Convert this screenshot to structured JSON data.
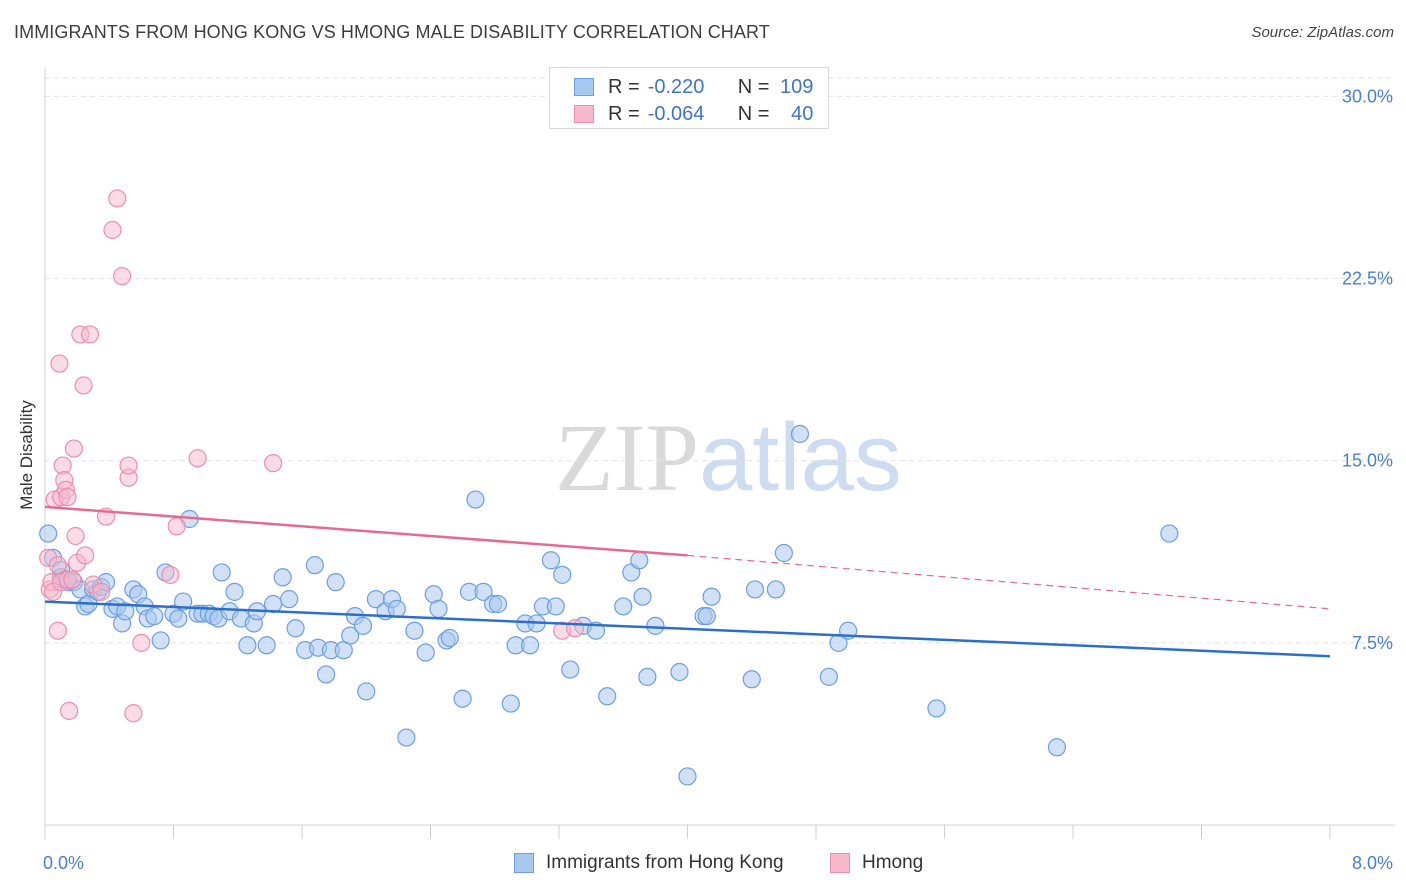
{
  "title": "IMMIGRANTS FROM HONG KONG VS HMONG MALE DISABILITY CORRELATION CHART",
  "source": "Source: ZipAtlas.com",
  "watermark": {
    "zip": "ZIP",
    "atlas": "atlas"
  },
  "legend": {
    "rows": [
      {
        "r_label": "R =",
        "r_value": "-0.220",
        "n_label": "N =",
        "n_value": "109"
      },
      {
        "r_label": "R =",
        "r_value": "-0.064",
        "n_label": "N =",
        "n_value": "40"
      }
    ]
  },
  "bottom_legend": [
    "Immigrants from Hong Kong",
    "Hmong"
  ],
  "chart_data": {
    "type": "scatter",
    "ylabel": "Male Disability",
    "xlabel": "",
    "xlim": [
      0,
      8
    ],
    "ylim": [
      0,
      31.5
    ],
    "x_tick_labels": {
      "min": "0.0%",
      "max": "8.0%"
    },
    "y_ticks": [
      {
        "value": 7.5,
        "label": "7.5%"
      },
      {
        "value": 15.0,
        "label": "15.0%"
      },
      {
        "value": 22.5,
        "label": "22.5%"
      },
      {
        "value": 30.0,
        "label": "30.0%"
      }
    ],
    "grid": true,
    "colors": {
      "hk_fill": "#a9c8f0",
      "hk_stroke": "#6d9ee0",
      "hk_line": "#2b6fcb",
      "hm_fill": "#f7b8cb",
      "hm_stroke": "#ec8ead",
      "hm_line": "#e46a92",
      "tick_label": "#4a7fcf",
      "grid": "#e2e2e2"
    },
    "series": [
      {
        "name": "Immigrants from Hong Kong",
        "trend": {
          "x0": 0.0,
          "y0": 9.2,
          "x1": 8.0,
          "y1": 6.95
        },
        "points": [
          [
            0.02,
            12.0
          ],
          [
            0.05,
            11.0
          ],
          [
            0.1,
            10.5
          ],
          [
            0.1,
            10.2
          ],
          [
            0.12,
            10.1
          ],
          [
            0.15,
            10.0
          ],
          [
            0.18,
            10.0
          ],
          [
            0.22,
            9.7
          ],
          [
            0.25,
            9.0
          ],
          [
            0.27,
            9.1
          ],
          [
            0.3,
            9.7
          ],
          [
            0.33,
            9.6
          ],
          [
            0.35,
            9.8
          ],
          [
            0.38,
            10.0
          ],
          [
            0.42,
            8.9
          ],
          [
            0.45,
            9.0
          ],
          [
            0.48,
            8.3
          ],
          [
            0.5,
            8.8
          ],
          [
            0.55,
            9.7
          ],
          [
            0.58,
            9.5
          ],
          [
            0.62,
            9.0
          ],
          [
            0.64,
            8.5
          ],
          [
            0.68,
            8.6
          ],
          [
            0.72,
            7.6
          ],
          [
            0.75,
            10.4
          ],
          [
            0.8,
            8.7
          ],
          [
            0.83,
            8.5
          ],
          [
            0.86,
            9.2
          ],
          [
            0.9,
            12.6
          ],
          [
            0.95,
            8.7
          ],
          [
            0.98,
            8.7
          ],
          [
            1.02,
            8.7
          ],
          [
            1.05,
            8.6
          ],
          [
            1.08,
            8.5
          ],
          [
            1.1,
            10.4
          ],
          [
            1.15,
            8.8
          ],
          [
            1.18,
            9.6
          ],
          [
            1.22,
            8.5
          ],
          [
            1.26,
            7.4
          ],
          [
            1.3,
            8.3
          ],
          [
            1.32,
            8.8
          ],
          [
            1.38,
            7.4
          ],
          [
            1.42,
            9.1
          ],
          [
            1.48,
            10.2
          ],
          [
            1.52,
            9.3
          ],
          [
            1.56,
            8.1
          ],
          [
            1.62,
            7.2
          ],
          [
            1.68,
            10.7
          ],
          [
            1.7,
            7.3
          ],
          [
            1.75,
            6.2
          ],
          [
            1.78,
            7.2
          ],
          [
            1.81,
            10.0
          ],
          [
            1.86,
            7.2
          ],
          [
            1.9,
            7.8
          ],
          [
            1.93,
            8.6
          ],
          [
            1.98,
            8.2
          ],
          [
            2.0,
            5.5
          ],
          [
            2.06,
            9.3
          ],
          [
            2.12,
            8.8
          ],
          [
            2.16,
            9.3
          ],
          [
            2.19,
            8.9
          ],
          [
            2.25,
            3.6
          ],
          [
            2.3,
            8.0
          ],
          [
            2.37,
            7.1
          ],
          [
            2.42,
            9.5
          ],
          [
            2.45,
            8.9
          ],
          [
            2.5,
            7.6
          ],
          [
            2.52,
            7.7
          ],
          [
            2.6,
            5.2
          ],
          [
            2.64,
            9.6
          ],
          [
            2.68,
            13.4
          ],
          [
            2.73,
            9.6
          ],
          [
            2.79,
            9.1
          ],
          [
            2.82,
            9.1
          ],
          [
            2.9,
            5.0
          ],
          [
            2.93,
            7.4
          ],
          [
            2.99,
            8.3
          ],
          [
            3.02,
            7.4
          ],
          [
            3.06,
            8.3
          ],
          [
            3.1,
            9.0
          ],
          [
            3.15,
            10.9
          ],
          [
            3.18,
            9.0
          ],
          [
            3.22,
            10.3
          ],
          [
            3.27,
            6.4
          ],
          [
            3.35,
            8.2
          ],
          [
            3.43,
            8.0
          ],
          [
            3.5,
            5.3
          ],
          [
            3.6,
            9.0
          ],
          [
            3.65,
            10.4
          ],
          [
            3.7,
            10.9
          ],
          [
            3.72,
            9.4
          ],
          [
            3.75,
            6.1
          ],
          [
            3.8,
            8.2
          ],
          [
            3.95,
            6.3
          ],
          [
            4.0,
            2.0
          ],
          [
            4.1,
            8.6
          ],
          [
            4.12,
            8.6
          ],
          [
            4.15,
            9.4
          ],
          [
            4.4,
            6.0
          ],
          [
            4.42,
            9.7
          ],
          [
            4.55,
            9.7
          ],
          [
            4.6,
            11.2
          ],
          [
            4.7,
            16.1
          ],
          [
            4.88,
            6.1
          ],
          [
            4.94,
            7.5
          ],
          [
            5.0,
            8.0
          ],
          [
            5.55,
            4.8
          ],
          [
            6.3,
            3.2
          ],
          [
            7.0,
            12.0
          ]
        ]
      },
      {
        "name": "Hmong",
        "trend": {
          "x0": 0.0,
          "y0": 13.1,
          "x1": 4.0,
          "y1": 11.1,
          "dash_x1": 8.0,
          "dash_y1": 8.9
        },
        "points": [
          [
            0.02,
            11.0
          ],
          [
            0.03,
            9.7
          ],
          [
            0.04,
            10.0
          ],
          [
            0.05,
            9.6
          ],
          [
            0.06,
            13.4
          ],
          [
            0.08,
            10.7
          ],
          [
            0.09,
            19.0
          ],
          [
            0.1,
            13.5
          ],
          [
            0.1,
            10.0
          ],
          [
            0.11,
            14.8
          ],
          [
            0.12,
            14.2
          ],
          [
            0.13,
            13.8
          ],
          [
            0.14,
            13.5
          ],
          [
            0.14,
            10.1
          ],
          [
            0.15,
            4.7
          ],
          [
            0.17,
            10.1
          ],
          [
            0.18,
            15.5
          ],
          [
            0.19,
            11.9
          ],
          [
            0.2,
            10.8
          ],
          [
            0.22,
            20.2
          ],
          [
            0.24,
            18.1
          ],
          [
            0.25,
            11.1
          ],
          [
            0.28,
            20.2
          ],
          [
            0.3,
            9.9
          ],
          [
            0.35,
            9.6
          ],
          [
            0.38,
            12.7
          ],
          [
            0.42,
            24.5
          ],
          [
            0.45,
            25.8
          ],
          [
            0.48,
            22.6
          ],
          [
            0.52,
            14.3
          ],
          [
            0.52,
            14.8
          ],
          [
            0.55,
            4.6
          ],
          [
            0.6,
            7.5
          ],
          [
            0.78,
            10.3
          ],
          [
            0.82,
            12.3
          ],
          [
            0.95,
            15.1
          ],
          [
            1.42,
            14.9
          ],
          [
            3.22,
            8.0
          ],
          [
            3.3,
            8.1
          ],
          [
            0.08,
            8.0
          ]
        ]
      }
    ]
  }
}
